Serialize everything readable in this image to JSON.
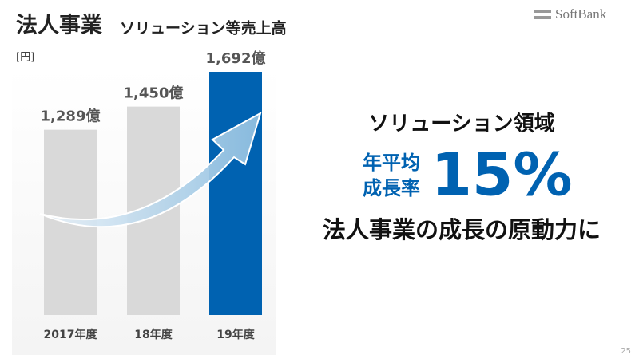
{
  "chart_data": {
    "type": "bar",
    "title": "法人事業",
    "subtitle": "ソリューション等売上高",
    "unit_label": "[円]",
    "categories": [
      "2017年度",
      "18年度",
      "19年度"
    ],
    "values": [
      1289,
      1450,
      1692
    ],
    "value_labels": [
      "1,289億",
      "1,450億",
      "1,692億"
    ],
    "colors": [
      "#d9d9d9",
      "#d9d9d9",
      "#0062b1"
    ]
  },
  "logo": "SoftBank",
  "callout": {
    "heading": "ソリューション領域",
    "metric_label_1": "年平均",
    "metric_label_2": "成長率",
    "metric_value": "15%",
    "conclusion": "法人事業の成長の原動力に"
  },
  "page_number": "25"
}
